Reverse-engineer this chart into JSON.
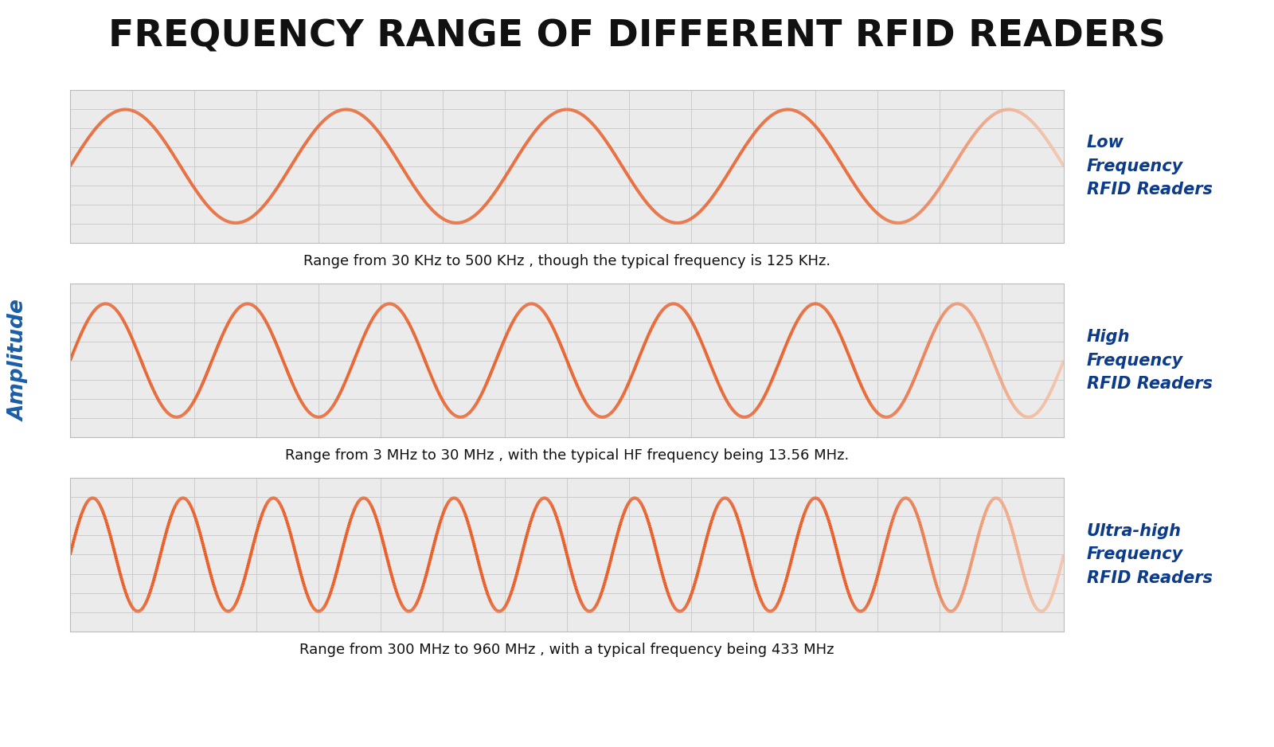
{
  "title": "FREQUENCY RANGE OF DIFFERENT RFID READERS",
  "title_fontsize": 34,
  "title_color": "#111111",
  "background_color": "#ffffff",
  "plot_bg_color": "#ebebeb",
  "grid_color": "#cccccc",
  "wave_color": "#E8541A",
  "wave_color_fade": "#f5c4a8",
  "wave_linewidth": 2.8,
  "ylabel": "Amplitude",
  "ylabel_color": "#1A5EA8",
  "ylabel_fontsize": 19,
  "panels": [
    {
      "label": "Low\nFrequency\nRFID Readers",
      "freq_cycles": 4.5,
      "annotation": "Range from 30 KHz to 500 KHz , though the typical frequency is 125 KHz."
    },
    {
      "label": "High\nFrequency\nRFID Readers",
      "freq_cycles": 7.0,
      "annotation": "Range from 3 MHz to 30 MHz , with the typical HF frequency being 13.56 MHz."
    },
    {
      "label": "Ultra-high\nFrequency\nRFID Readers",
      "freq_cycles": 11.0,
      "annotation": "Range from 300 MHz to 960 MHz , with a typical frequency being 433 MHz"
    }
  ],
  "annotation_fontsize": 13,
  "label_fontsize": 15,
  "label_color": "#0D3B8C",
  "n_xgrid": 16,
  "n_ygrid_per_panel": 4,
  "wave_amplitude": 1.0,
  "panel_ylim": 1.35
}
